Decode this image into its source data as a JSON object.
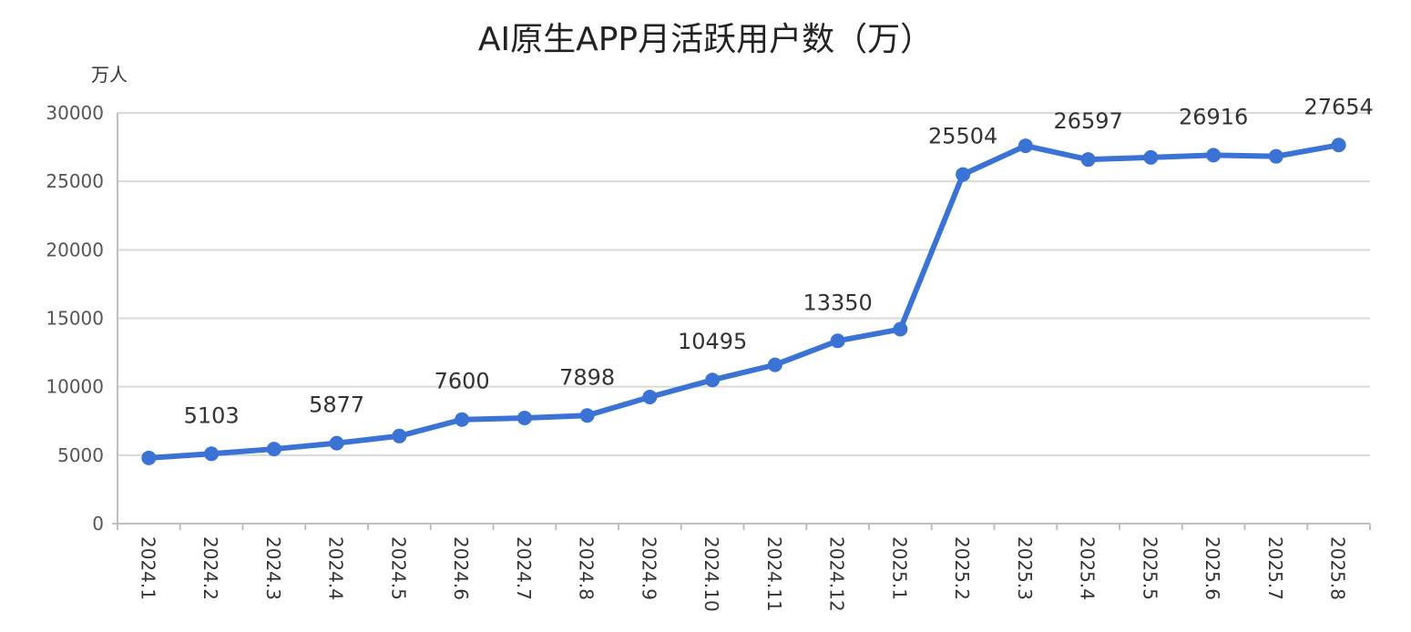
{
  "chart_data": {
    "type": "line",
    "title": "AI原生APP月活跃用户数（万）",
    "ylabel": "万人",
    "xlabel": "",
    "ylim": [
      0,
      30000
    ],
    "yticks": [
      0,
      5000,
      10000,
      15000,
      20000,
      25000,
      30000
    ],
    "grid": true,
    "legend": "none",
    "color": "#3A73D4",
    "categories": [
      "2024.1",
      "2024.2",
      "2024.3",
      "2024.4",
      "2024.5",
      "2024.6",
      "2024.7",
      "2024.8",
      "2024.9",
      "2024.10",
      "2024.11",
      "2024.12",
      "2025.1",
      "2025.2",
      "2025.3",
      "2025.4",
      "2025.5",
      "2025.6",
      "2025.7",
      "2025.8"
    ],
    "series": [
      {
        "values": [
          4800,
          5103,
          5450,
          5877,
          6400,
          7600,
          7720,
          7898,
          9250,
          10495,
          11600,
          13350,
          14200,
          25504,
          27600,
          26597,
          26750,
          26916,
          26830,
          27654
        ]
      }
    ],
    "data_labels": [
      {
        "index": 1,
        "text": "5103"
      },
      {
        "index": 3,
        "text": "5877"
      },
      {
        "index": 5,
        "text": "7600"
      },
      {
        "index": 7,
        "text": "7898"
      },
      {
        "index": 9,
        "text": "10495"
      },
      {
        "index": 11,
        "text": "13350"
      },
      {
        "index": 13,
        "text": "25504"
      },
      {
        "index": 15,
        "text": "26597"
      },
      {
        "index": 17,
        "text": "26916"
      },
      {
        "index": 19,
        "text": "27654"
      }
    ]
  }
}
